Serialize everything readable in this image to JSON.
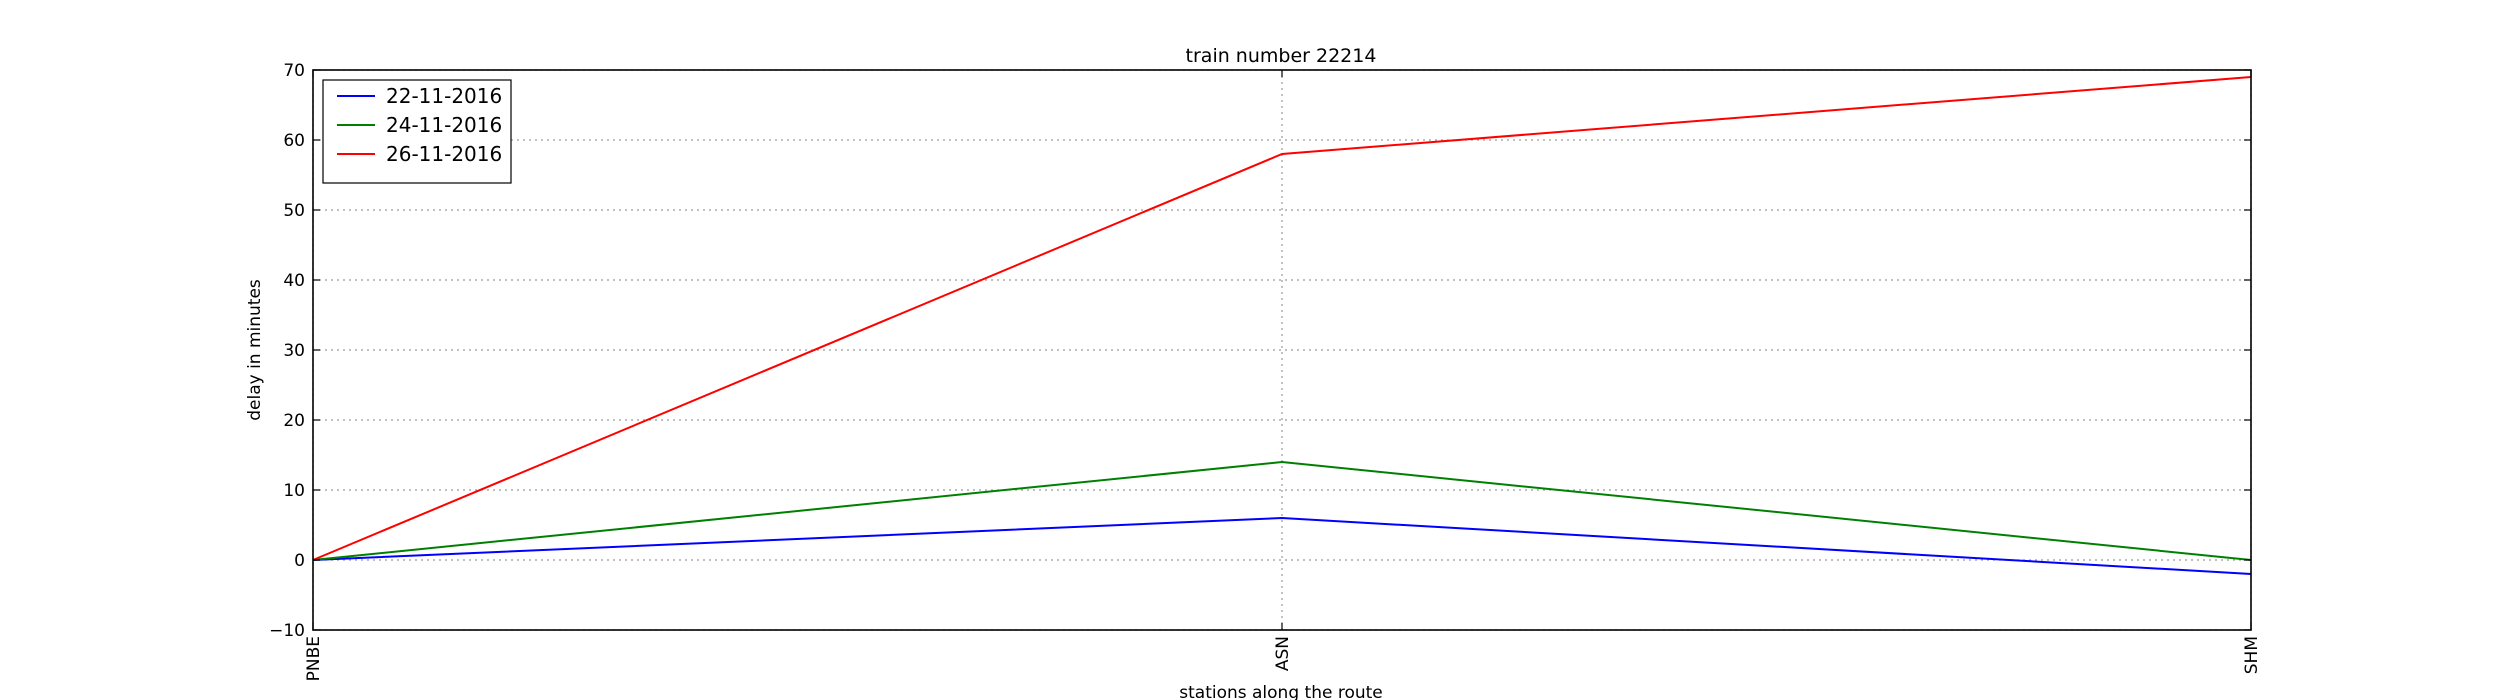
{
  "chart_data": {
    "type": "line",
    "title": "train number 22214",
    "xlabel": "stations along the route",
    "ylabel": "delay in minutes",
    "categories": [
      "PNBE",
      "ASN",
      "SHM"
    ],
    "ylim": [
      -10,
      70
    ],
    "yticks": [
      -10,
      0,
      10,
      20,
      30,
      40,
      50,
      60,
      70
    ],
    "grid": true,
    "legend_position": "top-left",
    "series": [
      {
        "name": "22-11-2016",
        "color": "#0000ff",
        "values": [
          0,
          6,
          -2
        ]
      },
      {
        "name": "24-11-2016",
        "color": "#008000",
        "values": [
          0,
          14,
          0
        ]
      },
      {
        "name": "26-11-2016",
        "color": "#ff0000",
        "values": [
          0,
          58,
          69
        ]
      }
    ]
  }
}
